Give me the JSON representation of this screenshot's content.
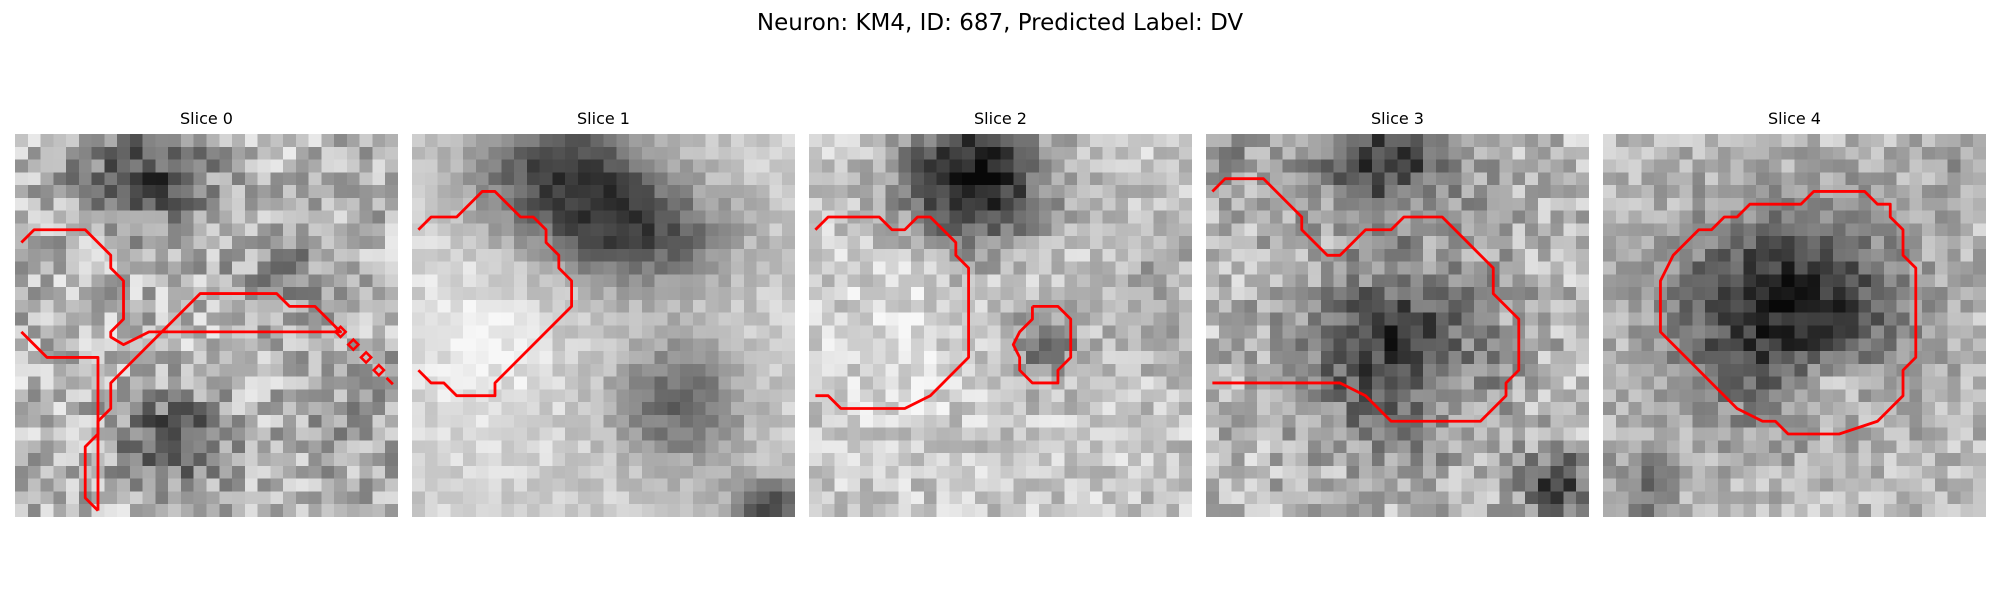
{
  "figure": {
    "title": "Neuron: KM4, ID: 687, Predicted Label: DV"
  },
  "panels": [
    {
      "title": "Slice 0"
    },
    {
      "title": "Slice 1"
    },
    {
      "title": "Slice 2"
    },
    {
      "title": "Slice 3"
    },
    {
      "title": "Slice 4"
    }
  ],
  "colors": {
    "contour": "#ff0000",
    "background": "#ffffff"
  }
}
